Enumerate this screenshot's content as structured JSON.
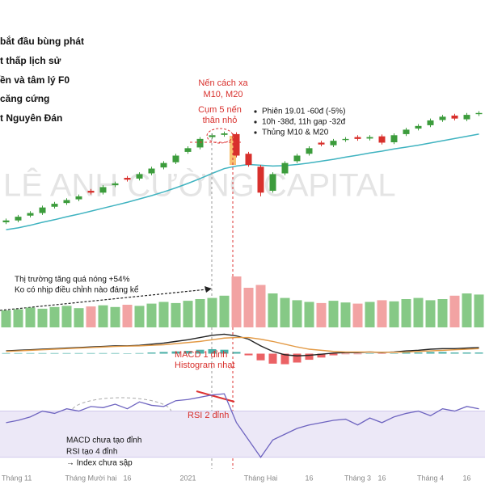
{
  "chart_data": [
    {
      "type": "candlestick",
      "watermark": "LÊ ANH CƯỜNG CAPITAL",
      "annotations": [
        "bắt đầu bùng phát",
        "t thấp lịch sử",
        "ền và tâm lý F0",
        "căng cứng",
        "t Nguyên Đán",
        "Nến cách xa",
        "M10, M20",
        "Cụm 5 nến",
        "thân nhỏ",
        "Phiên 19.01 -60đ (-5%)",
        "10h -38đ, 11h gap -32đ",
        "Thủng M10 & M20",
        "Thị trường tăng quá nóng +54%",
        "Ko có nhịp điều chỉnh nào đáng kể",
        "MACD 1 đỉnh",
        "Histogram nhạt",
        "RSI 2 đỉnh",
        "MACD chưa tạo đỉnh",
        "RSI tạo 4 đỉnh",
        "→ Index chưa sập"
      ],
      "up_color": "#3c9c3c",
      "down_color": "#d8302c",
      "ylim": [
        830,
        1550
      ],
      "open": [
        950,
        955,
        968,
        975,
        992,
        1002,
        1012,
        1035,
        1030,
        1050,
        1070,
        1068,
        1082,
        1098,
        1112,
        1140,
        1152,
        1180,
        1186,
        1188,
        1135,
        1100,
        1035,
        1082,
        1115,
        1135,
        1165,
        1158,
        1172,
        1180,
        1176,
        1182,
        1166,
        1188,
        1203,
        1212,
        1226,
        1238,
        1228,
        1242
      ],
      "high": [
        960,
        970,
        980,
        995,
        1005,
        1015,
        1025,
        1040,
        1050,
        1060,
        1075,
        1085,
        1100,
        1115,
        1135,
        1155,
        1180,
        1190,
        1195,
        1193,
        1140,
        1105,
        1085,
        1115,
        1135,
        1155,
        1170,
        1175,
        1180,
        1185,
        1185,
        1187,
        1190,
        1205,
        1215,
        1230,
        1240,
        1243,
        1245,
        1250
      ],
      "low": [
        945,
        950,
        963,
        970,
        987,
        997,
        1007,
        1025,
        1025,
        1045,
        1060,
        1063,
        1077,
        1093,
        1107,
        1135,
        1147,
        1175,
        1181,
        1125,
        1100,
        1020,
        1030,
        1077,
        1110,
        1130,
        1155,
        1153,
        1167,
        1170,
        1171,
        1160,
        1161,
        1183,
        1198,
        1207,
        1221,
        1225,
        1223,
        1237
      ],
      "close": [
        955,
        965,
        975,
        990,
        1000,
        1010,
        1020,
        1030,
        1045,
        1055,
        1065,
        1080,
        1095,
        1110,
        1130,
        1150,
        1175,
        1185,
        1190,
        1130,
        1105,
        1030,
        1080,
        1110,
        1130,
        1150,
        1160,
        1170,
        1175,
        1175,
        1180,
        1165,
        1185,
        1200,
        1210,
        1225,
        1235,
        1230,
        1240,
        1245
      ],
      "ma": {
        "color": "#3fb3c0",
        "values": [
          930,
          935,
          942,
          950,
          957,
          965,
          972,
          980,
          988,
          996,
          1004,
          1013,
          1022,
          1032,
          1043,
          1055,
          1068,
          1082,
          1095,
          1102,
          1106,
          1104,
          1102,
          1103,
          1106,
          1110,
          1115,
          1120,
          1126,
          1131,
          1137,
          1142,
          1148,
          1153,
          1158,
          1164,
          1170,
          1176,
          1182,
          1188
        ]
      }
    },
    {
      "type": "bar",
      "up_color": "#86c986",
      "down_color": "#f2a3a3",
      "ylim": [
        0,
        1000
      ],
      "values": [
        300,
        320,
        350,
        330,
        360,
        380,
        340,
        370,
        390,
        360,
        400,
        380,
        420,
        450,
        430,
        470,
        500,
        520,
        560,
        900,
        700,
        750,
        600,
        520,
        480,
        450,
        430,
        470,
        440,
        420,
        450,
        480,
        460,
        500,
        520,
        480,
        500,
        560,
        600,
        580
      ]
    },
    {
      "type": "line",
      "ylim": [
        -40,
        40
      ],
      "series": [
        {
          "color": "#222222",
          "values": [
            5,
            6,
            7,
            8,
            9,
            10,
            11,
            12,
            13,
            14,
            14,
            15,
            17,
            19,
            22,
            25,
            29,
            33,
            35,
            32,
            26,
            14,
            4,
            -2,
            -4,
            -3,
            -1,
            1,
            2,
            2,
            3,
            2,
            3,
            5,
            6,
            8,
            9,
            9,
            10,
            11
          ]
        },
        {
          "color": "#e39a45",
          "values": [
            4,
            5,
            6,
            7,
            8,
            9,
            10,
            11,
            12,
            13,
            13.5,
            14,
            15,
            16,
            18,
            20,
            22,
            25,
            28,
            29,
            29,
            26,
            22,
            17,
            12,
            8,
            6,
            4,
            3,
            3,
            3,
            2.5,
            2.5,
            3,
            4,
            5,
            6,
            7,
            8,
            9
          ]
        }
      ],
      "histogram": {
        "pos_color": "#2aa198",
        "neg_color": "#e8474a",
        "values": [
          1,
          1,
          1,
          1,
          1,
          1,
          1,
          1,
          1,
          1,
          0.5,
          1,
          2,
          3,
          4,
          5,
          7,
          8,
          7,
          3,
          -3,
          -12,
          -18,
          -19,
          -16,
          -11,
          -7,
          -3,
          -1,
          -1,
          0,
          -0.5,
          0.5,
          2,
          2,
          3,
          3,
          2,
          2,
          2
        ]
      }
    },
    {
      "type": "line",
      "ylim": [
        20,
        90
      ],
      "color": "#6e64c0",
      "band": [
        30,
        70
      ],
      "band_color": "#ece8f7",
      "values": [
        60,
        62,
        65,
        70,
        68,
        72,
        70,
        74,
        73,
        76,
        72,
        78,
        75,
        74,
        79,
        80,
        82,
        84,
        85,
        60,
        45,
        30,
        45,
        50,
        55,
        58,
        60,
        62,
        63,
        58,
        64,
        60,
        65,
        68,
        70,
        66,
        72,
        70,
        74,
        72
      ],
      "categories": [
        "Tháng 11",
        null,
        null,
        null,
        null,
        null,
        null,
        "Tháng Mười hai",
        null,
        null,
        "16",
        null,
        null,
        null,
        null,
        "2021",
        null,
        null,
        null,
        null,
        null,
        "Tháng Hai",
        null,
        null,
        null,
        "16",
        null,
        null,
        null,
        "Tháng 3",
        null,
        "16",
        null,
        null,
        null,
        "Tháng 4",
        null,
        null,
        "16",
        null
      ]
    }
  ]
}
